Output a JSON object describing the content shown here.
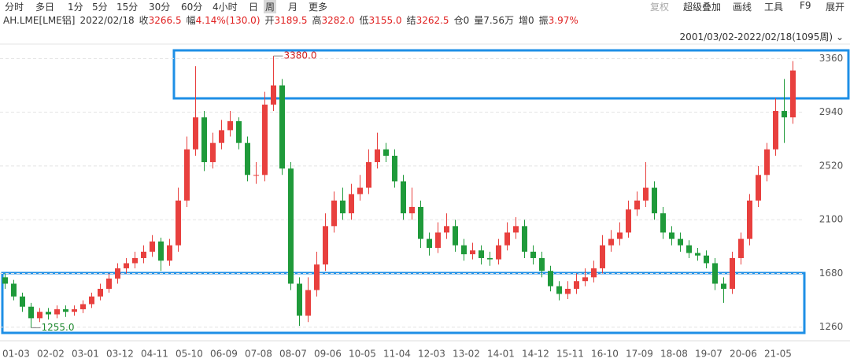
{
  "toolbar": {
    "tabs": [
      "分时",
      "多日",
      "1分",
      "5分",
      "15分",
      "30分",
      "60分",
      "4小时",
      "日",
      "周",
      "月",
      "更多"
    ],
    "active": 9,
    "tools": [
      "复权",
      "超级叠加",
      "画线",
      "工具",
      "F9",
      "展开"
    ]
  },
  "quote": {
    "symbol": "AH.LME[LME铝]",
    "date": "2022/02/18",
    "fields": [
      {
        "label": "收",
        "value": "3266.5"
      },
      {
        "label": "幅",
        "value": "4.14%(130.0)"
      },
      {
        "label": "开",
        "value": "3189.5"
      },
      {
        "label": "高",
        "value": "3282.0"
      },
      {
        "label": "低",
        "value": "3155.0"
      },
      {
        "label": "结",
        "value": "3262.5"
      },
      {
        "label": "仓",
        "value": "0"
      },
      {
        "label": "量",
        "value": "7.56万"
      },
      {
        "label": "增",
        "value": "0"
      },
      {
        "label": "振",
        "value": "3.97%"
      }
    ]
  },
  "range_label": "2001/03/02-2022/02/18(1095周)",
  "chart_data": {
    "type": "candlestick",
    "categories": [
      "01-03",
      null,
      null,
      null,
      "02-02",
      null,
      null,
      null,
      "03-01",
      null,
      null,
      null,
      "03-12",
      null,
      null,
      null,
      "04-11",
      null,
      null,
      null,
      "05-10",
      null,
      null,
      null,
      "06-09",
      null,
      null,
      null,
      "07-08",
      null,
      null,
      null,
      "08-07",
      null,
      null,
      null,
      "09-06",
      null,
      null,
      null,
      "10-05",
      null,
      null,
      null,
      "11-04",
      null,
      null,
      null,
      "12-03",
      null,
      null,
      null,
      "13-02",
      null,
      null,
      null,
      "14-01",
      null,
      null,
      null,
      "14-12",
      null,
      null,
      null,
      "15-11",
      null,
      null,
      null,
      "16-10",
      null,
      null,
      null,
      "17-09",
      null,
      null,
      null,
      "18-08",
      null,
      null,
      null,
      "19-07",
      null,
      null,
      null,
      "20-06",
      null,
      null,
      null,
      "21-05",
      null,
      null,
      null
    ],
    "open": [
      1650,
      1600,
      1500,
      1420,
      1330,
      1380,
      1360,
      1400,
      1380,
      1400,
      1440,
      1500,
      1560,
      1640,
      1720,
      1760,
      1800,
      1850,
      1930,
      1780,
      1900,
      2250,
      2650,
      2900,
      2550,
      2700,
      2800,
      2870,
      2700,
      2450,
      2450,
      3000,
      3150,
      2500,
      1600,
      1350,
      1550,
      1750,
      2050,
      2250,
      2150,
      2300,
      2350,
      2550,
      2650,
      2600,
      2400,
      2150,
      2200,
      1950,
      1880,
      2000,
      2050,
      1900,
      1830,
      1860,
      1800,
      1790,
      1900,
      2000,
      2050,
      1850,
      1800,
      1700,
      1580,
      1520,
      1560,
      1620,
      1650,
      1720,
      1900,
      1950,
      2000,
      2180,
      2250,
      2350,
      2150,
      2000,
      1950,
      1900,
      1840,
      1820,
      1760,
      1600,
      1560,
      1800,
      1950,
      2250,
      2450,
      2650,
      2950,
      2900
    ],
    "high": [
      1680,
      1630,
      1530,
      1450,
      1410,
      1410,
      1430,
      1430,
      1430,
      1470,
      1530,
      1600,
      1680,
      1760,
      1800,
      1850,
      1900,
      1980,
      1960,
      1950,
      2350,
      2750,
      3300,
      2950,
      2780,
      2880,
      2950,
      2900,
      2750,
      2550,
      3100,
      3380,
      3200,
      2550,
      1650,
      1650,
      1850,
      2150,
      2320,
      2350,
      2380,
      2450,
      2650,
      2780,
      2700,
      2650,
      2450,
      2350,
      2250,
      2000,
      2080,
      2150,
      2100,
      1950,
      1920,
      1900,
      1850,
      1950,
      2080,
      2120,
      2100,
      1900,
      1850,
      1740,
      1620,
      1620,
      1680,
      1720,
      1780,
      1980,
      2020,
      2080,
      2250,
      2320,
      2550,
      2400,
      2200,
      2050,
      2000,
      1940,
      1880,
      1860,
      1800,
      1650,
      1850,
      2000,
      2300,
      2520,
      2700,
      3050,
      3200,
      3340
    ],
    "low": [
      1560,
      1470,
      1380,
      1255,
      1300,
      1320,
      1330,
      1340,
      1350,
      1370,
      1410,
      1470,
      1530,
      1600,
      1680,
      1720,
      1760,
      1810,
      1700,
      1740,
      1850,
      2200,
      2600,
      2480,
      2500,
      2650,
      2750,
      2650,
      2400,
      2380,
      2400,
      2950,
      2450,
      1550,
      1270,
      1300,
      1500,
      1700,
      2000,
      2100,
      2100,
      2250,
      2300,
      2500,
      2550,
      2350,
      2100,
      2100,
      1880,
      1820,
      1840,
      1950,
      1850,
      1780,
      1790,
      1750,
      1740,
      1750,
      1860,
      1950,
      1800,
      1750,
      1650,
      1540,
      1470,
      1480,
      1520,
      1580,
      1610,
      1680,
      1850,
      1900,
      1960,
      2130,
      2200,
      2100,
      1950,
      1900,
      1850,
      1800,
      1780,
      1720,
      1550,
      1450,
      1520,
      1750,
      1900,
      2200,
      2400,
      2600,
      2700,
      2850
    ],
    "close": [
      1600,
      1500,
      1420,
      1330,
      1380,
      1360,
      1400,
      1380,
      1400,
      1440,
      1500,
      1560,
      1640,
      1720,
      1760,
      1800,
      1850,
      1930,
      1780,
      1900,
      2250,
      2650,
      2900,
      2550,
      2700,
      2800,
      2870,
      2700,
      2450,
      2450,
      3000,
      3150,
      2500,
      1600,
      1350,
      1550,
      1750,
      2050,
      2250,
      2150,
      2300,
      2350,
      2550,
      2650,
      2600,
      2400,
      2150,
      2200,
      1950,
      1880,
      2000,
      2050,
      1900,
      1830,
      1860,
      1800,
      1790,
      1900,
      2000,
      2050,
      1850,
      1800,
      1700,
      1580,
      1520,
      1560,
      1620,
      1650,
      1720,
      1900,
      1950,
      2000,
      2180,
      2250,
      2350,
      2150,
      2000,
      1950,
      1900,
      1840,
      1820,
      1760,
      1600,
      1560,
      1800,
      1950,
      2250,
      2450,
      2650,
      2950,
      2900,
      3266.5
    ],
    "up_color": "#e8403e",
    "down_color": "#1f9a3a",
    "ylim": [
      1160,
      3430
    ],
    "yticks": [
      1260,
      1680,
      2100,
      2520,
      2940,
      3360
    ],
    "grid": true,
    "annotations": [
      {
        "value": 3380,
        "label": "3380.0",
        "color": "#d02020"
      },
      {
        "value": 1255,
        "label": "1255.0",
        "color": "#1f8a30"
      }
    ]
  }
}
